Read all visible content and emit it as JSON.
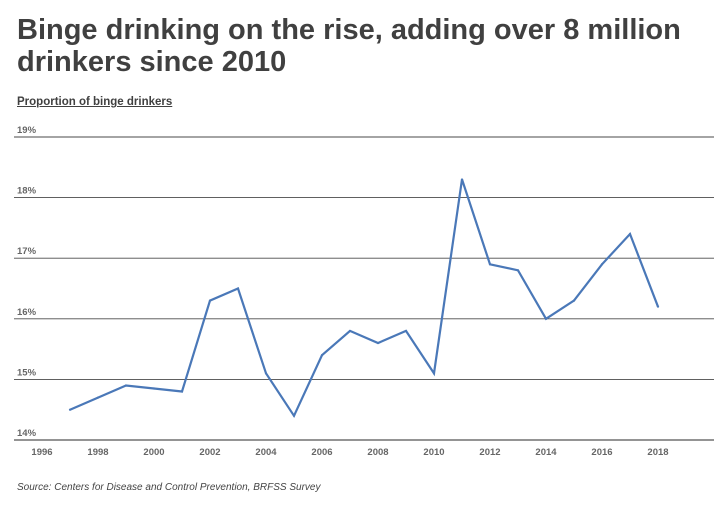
{
  "title": "Binge drinking on the rise, adding over 8 million drinkers since 2010",
  "source": "Source: Centers for Disease and Control Prevention, BRFSS Survey",
  "chart_data": {
    "type": "line",
    "title": "Binge drinking on the rise, adding over 8 million drinkers since 2010",
    "xlabel": "",
    "ylabel": "Proportion of binge drinkers",
    "xlim": [
      1996,
      2020
    ],
    "ylim": [
      14,
      19
    ],
    "x_ticks": [
      "1996",
      "1998",
      "2000",
      "2002",
      "2004",
      "2006",
      "2008",
      "2010",
      "2012",
      "2014",
      "2016",
      "2018"
    ],
    "y_ticks": [
      "14%",
      "15%",
      "16%",
      "17%",
      "18%",
      "19%"
    ],
    "grid": "horizontal",
    "line_color": "#4a78b8",
    "x": [
      1997,
      1998,
      1999,
      2000,
      2001,
      2002,
      2003,
      2004,
      2005,
      2006,
      2007,
      2008,
      2009,
      2010,
      2011,
      2012,
      2013,
      2014,
      2015,
      2016,
      2017,
      2018
    ],
    "series": [
      {
        "values": [
          14.5,
          14.7,
          14.9,
          14.85,
          14.8,
          16.3,
          16.5,
          15.1,
          14.4,
          15.4,
          15.8,
          15.6,
          15.8,
          15.1,
          18.3,
          16.9,
          16.8,
          16.0,
          16.3,
          16.9,
          17.4,
          16.2
        ]
      }
    ]
  }
}
